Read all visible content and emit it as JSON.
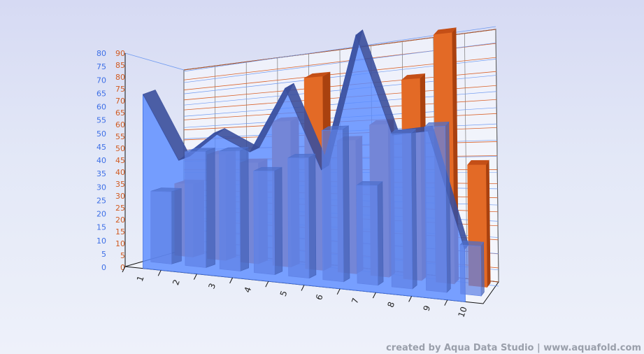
{
  "chart_data": {
    "type": "bar",
    "subtype": "3d-combination",
    "categories": [
      "1",
      "2",
      "3",
      "4",
      "5",
      "6",
      "7",
      "8",
      "9",
      "10"
    ],
    "series": [
      {
        "type": "bar",
        "values": [
          35,
          49,
          45,
          63,
          81,
          54,
          60,
          77,
          93,
          44
        ]
      },
      {
        "type": "area",
        "values": [
          76,
          47,
          58,
          50,
          74,
          43,
          91,
          55,
          56,
          17
        ]
      },
      {
        "type": "bar",
        "values": [
          31,
          48,
          48,
          40,
          45,
          55,
          35,
          53,
          55,
          16
        ]
      }
    ],
    "axes": {
      "y_left": {
        "ylim": [
          0,
          80
        ],
        "ticks": [
          "0",
          "5",
          "10",
          "15",
          "20",
          "25",
          "30",
          "35",
          "40",
          "45",
          "50",
          "55",
          "60",
          "65",
          "70",
          "75",
          "80"
        ]
      },
      "y_right": {
        "ylim": [
          0,
          90
        ],
        "ticks": [
          "0",
          "5",
          "10",
          "15",
          "20",
          "25",
          "30",
          "35",
          "40",
          "45",
          "50",
          "55",
          "60",
          "65",
          "70",
          "75",
          "80",
          "85",
          "90"
        ]
      }
    },
    "colors": {
      "orange": "#e36a26",
      "blue": "#5b8cff",
      "blue_dark": "#3b4f9c",
      "grid_orange": "#d9622a",
      "grid_blue": "#6f9af0",
      "label_blue": "#3d6fe6",
      "label_orange": "#d15a20"
    },
    "grid": true,
    "legend": "none"
  },
  "footer": {
    "credit": "created by Aqua Data Studio | www.aquafold.com"
  }
}
